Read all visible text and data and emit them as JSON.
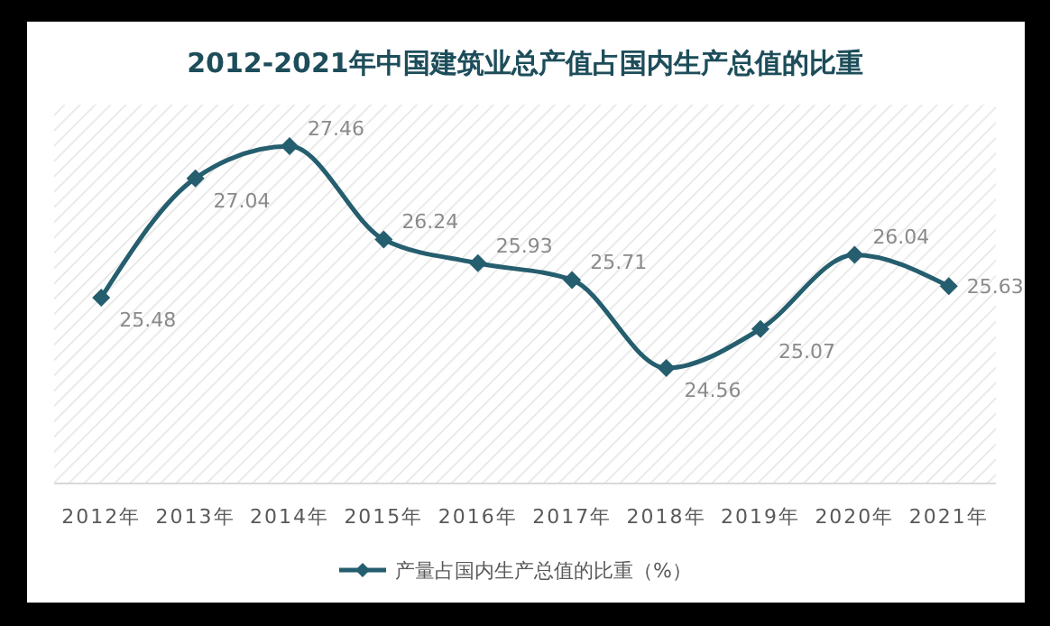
{
  "chart_data": {
    "type": "line",
    "title": "2012-2021年中国建筑业总产值占国内生产总值的比重",
    "categories": [
      "2012年",
      "2013年",
      "2014年",
      "2015年",
      "2016年",
      "2017年",
      "2018年",
      "2019年",
      "2020年",
      "2021年"
    ],
    "series": [
      {
        "name": "产量占国内生产总值的比重（%）",
        "color": "#255e6e",
        "values": [
          25.48,
          27.04,
          27.46,
          26.24,
          25.93,
          25.71,
          24.56,
          25.07,
          26.04,
          25.63
        ]
      }
    ],
    "data_labels": true,
    "marker": "diamond",
    "legend": "bottom",
    "tick_labels": "x"
  }
}
